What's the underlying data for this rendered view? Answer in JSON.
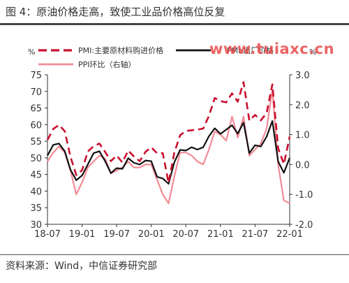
{
  "title": "图 4：原油价格走高，致使工业品价格高位反复",
  "source": "资料来源：Wind，中信证券研究部",
  "watermark": "www.tuiaxc.cn",
  "colors": {
    "pmi_input": "#c8102e",
    "pmi_output": "#111111",
    "ppi": "#f28b96",
    "watermark": "#e84a4a"
  },
  "chart_data": {
    "type": "line",
    "left_unit": "%",
    "right_unit": "%",
    "left_ylim": [
      30,
      75
    ],
    "right_ylim": [
      -2.0,
      3.0
    ],
    "left_ticks": [
      "30",
      "35",
      "40",
      "45",
      "50",
      "55",
      "60",
      "65",
      "70",
      "75"
    ],
    "right_ticks": [
      "-2.0",
      "-1.0",
      "0.0",
      "1.0",
      "2.0",
      "3.0"
    ],
    "x_ticks": [
      "18-07",
      "19-01",
      "19-07",
      "20-01",
      "20-07",
      "21-01",
      "21-07",
      "22-01"
    ],
    "x": [
      "2018-07",
      "2018-08",
      "2018-09",
      "2018-10",
      "2018-11",
      "2018-12",
      "2019-01",
      "2019-02",
      "2019-03",
      "2019-04",
      "2019-05",
      "2019-06",
      "2019-07",
      "2019-08",
      "2019-09",
      "2019-10",
      "2019-11",
      "2019-12",
      "2020-01",
      "2020-02",
      "2020-03",
      "2020-04",
      "2020-05",
      "2020-06",
      "2020-07",
      "2020-08",
      "2020-09",
      "2020-10",
      "2020-11",
      "2020-12",
      "2021-01",
      "2021-02",
      "2021-03",
      "2021-04",
      "2021-05",
      "2021-06",
      "2021-07",
      "2021-08",
      "2021-09",
      "2021-10",
      "2021-11",
      "2021-12",
      "2022-01"
    ],
    "series": [
      {
        "name": "PMI:主要原材料购进价格",
        "axis": "left",
        "style": "dashed",
        "values": [
          55.4,
          58.7,
          59.9,
          58.0,
          50.3,
          44.8,
          46.3,
          51.9,
          53.5,
          54.3,
          51.8,
          49.0,
          50.7,
          48.6,
          52.2,
          50.4,
          49.0,
          51.8,
          53.2,
          51.4,
          51.4,
          42.5,
          51.6,
          56.8,
          58.1,
          58.3,
          58.5,
          58.8,
          62.6,
          68.0,
          67.1,
          66.7,
          69.4,
          66.9,
          72.8,
          61.2,
          62.9,
          61.3,
          63.5,
          72.1,
          52.9,
          48.1,
          56.4
        ]
      },
      {
        "name": "PMI:出厂价格",
        "axis": "left",
        "style": "solid",
        "values": [
          50.7,
          53.9,
          54.3,
          52.0,
          46.4,
          43.3,
          44.7,
          48.0,
          51.4,
          52.0,
          49.0,
          45.4,
          46.9,
          46.7,
          49.9,
          48.5,
          48.0,
          49.2,
          49.0,
          44.3,
          43.8,
          42.2,
          48.7,
          52.4,
          52.2,
          53.2,
          52.5,
          53.2,
          56.5,
          58.9,
          57.2,
          58.5,
          59.8,
          57.3,
          60.6,
          51.4,
          53.8,
          53.4,
          56.4,
          61.1,
          48.9,
          45.5,
          50.0
        ]
      },
      {
        "name": "PPI环比（右轴）",
        "axis": "right",
        "style": "solid",
        "values": [
          0.1,
          0.4,
          0.6,
          0.4,
          -0.2,
          -1.0,
          -0.6,
          -0.1,
          0.1,
          0.3,
          0.2,
          -0.3,
          -0.2,
          -0.1,
          0.1,
          -0.1,
          -0.1,
          0.0,
          0.0,
          -0.5,
          -1.0,
          -1.3,
          -0.4,
          0.4,
          0.4,
          0.3,
          0.1,
          0.0,
          0.5,
          1.1,
          1.0,
          0.8,
          1.6,
          0.9,
          1.6,
          0.3,
          0.5,
          0.7,
          1.2,
          2.5,
          0.0,
          -1.2,
          -1.3
        ]
      }
    ],
    "legend": [
      {
        "label": "PMI:主要原材料购进价格",
        "style": "dashed"
      },
      {
        "label": "PMI:出厂价格",
        "style": "solid"
      },
      {
        "label": "PPI环比（右轴）",
        "style": "solid"
      }
    ],
    "legend_position": "top",
    "grid": false
  }
}
